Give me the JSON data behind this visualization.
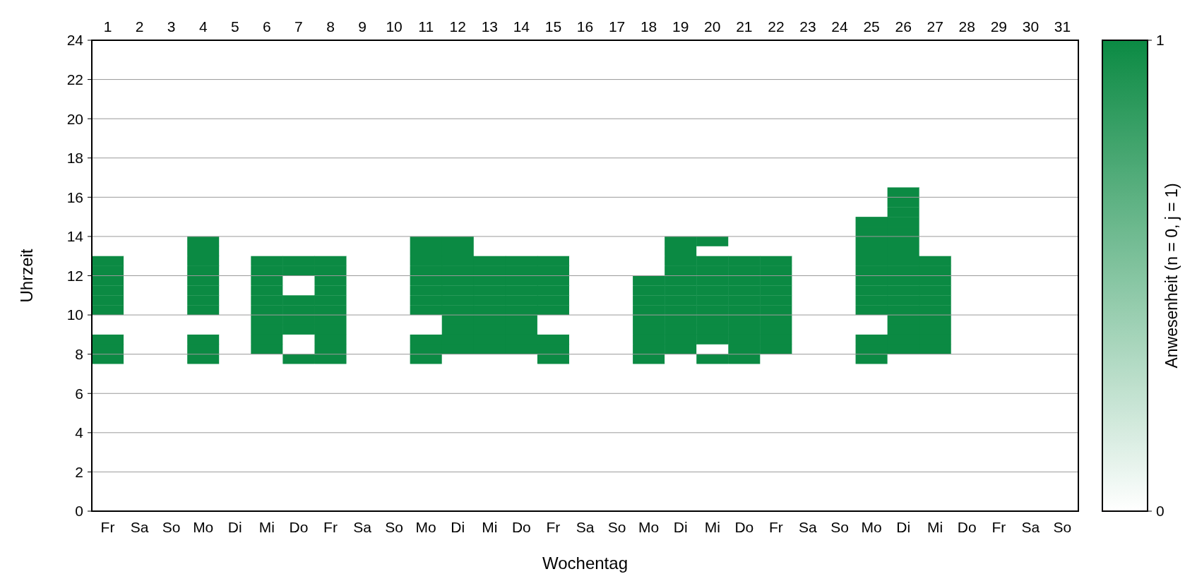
{
  "chart_data": {
    "type": "heatmap",
    "xlabel": "Wochentag",
    "ylabel": "Uhrzeit",
    "clabel": "Anwesenheit (n = 0, j = 1)",
    "categories": [
      "Fr",
      "Sa",
      "So",
      "Mo",
      "Di",
      "Mi",
      "Do",
      "Fr",
      "Sa",
      "So",
      "Mo",
      "Di",
      "Mi",
      "Do",
      "Fr",
      "Sa",
      "So",
      "Mo",
      "Di",
      "Mi",
      "Do",
      "Fr",
      "Sa",
      "So",
      "Mo",
      "Di",
      "Mi",
      "Do",
      "Fr",
      "Sa",
      "So"
    ],
    "x2lim": [
      0.5,
      31.5
    ],
    "x2ticks": [
      1,
      2,
      3,
      4,
      5,
      6,
      7,
      8,
      9,
      10,
      11,
      12,
      13,
      14,
      15,
      16,
      17,
      18,
      19,
      20,
      21,
      22,
      23,
      24,
      25,
      26,
      27,
      28,
      29,
      30,
      31
    ],
    "ylim": [
      0,
      24
    ],
    "yticks": [
      0,
      2,
      4,
      6,
      8,
      10,
      12,
      14,
      16,
      18,
      20,
      22,
      24
    ],
    "grid": "y",
    "clim": [
      0,
      1
    ],
    "cticks": [
      0,
      1
    ],
    "colors": [
      "#ffffff",
      "#0b8a43"
    ],
    "cells": [
      [
        0,
        0,
        0,
        0,
        0,
        0,
        0,
        0,
        0,
        0,
        0,
        0,
        0,
        0,
        0,
        0,
        0,
        0,
        0,
        0,
        0,
        0,
        0,
        0,
        0,
        0,
        0,
        0,
        0,
        0,
        0
      ],
      [
        0,
        0,
        0,
        0,
        0,
        0,
        0,
        0,
        0,
        0,
        0,
        0,
        0,
        0,
        0,
        0,
        0,
        0,
        0,
        0,
        0,
        0,
        0,
        0,
        0,
        0,
        0,
        0,
        0,
        0,
        0
      ],
      [
        0,
        0,
        0,
        0,
        0,
        0,
        0,
        0,
        0,
        0,
        0,
        0,
        0,
        0,
        0,
        0,
        0,
        0,
        0,
        0,
        0,
        0,
        0,
        0,
        0,
        0,
        0,
        0,
        0,
        0,
        0
      ],
      [
        0,
        0,
        0,
        0,
        0,
        0,
        0,
        0,
        0,
        0,
        0,
        0,
        0,
        0,
        0,
        0,
        0,
        0,
        0,
        0,
        0,
        0,
        0,
        0,
        0,
        0,
        0,
        0,
        0,
        0,
        0
      ],
      [
        0,
        0,
        0,
        0,
        0,
        0,
        0,
        0,
        0,
        0,
        0,
        0,
        0,
        0,
        0,
        0,
        0,
        0,
        0,
        0,
        0,
        0,
        0,
        0,
        0,
        0,
        0,
        0,
        0,
        0,
        0
      ],
      [
        0,
        0,
        0,
        0,
        0,
        0,
        0,
        0,
        0,
        0,
        0,
        0,
        0,
        0,
        0,
        0,
        0,
        0,
        0,
        0,
        0,
        0,
        0,
        0,
        0,
        0,
        0,
        0,
        0,
        0,
        0
      ],
      [
        0,
        0,
        0,
        0,
        0,
        0,
        0,
        0,
        0,
        0,
        0,
        0,
        0,
        0,
        0,
        0,
        0,
        0,
        0,
        0,
        0,
        0,
        0,
        0,
        0,
        0,
        0,
        0,
        0,
        0,
        0
      ],
      [
        0,
        0,
        0,
        0,
        0,
        0,
        0,
        0,
        0,
        0,
        0,
        0,
        0,
        0,
        0,
        0,
        0,
        0,
        0,
        0,
        0,
        0,
        0,
        0,
        0,
        0,
        0,
        0,
        0,
        0,
        0
      ],
      [
        0,
        0,
        0,
        0,
        0,
        0,
        0,
        0,
        0,
        0,
        0,
        0,
        0,
        0,
        0,
        0,
        0,
        0,
        0,
        0,
        0,
        0,
        0,
        0,
        0,
        0,
        0,
        0,
        0,
        0,
        0
      ],
      [
        0,
        0,
        0,
        0,
        0,
        0,
        0,
        0,
        0,
        0,
        0,
        0,
        0,
        0,
        0,
        0,
        0,
        0,
        0,
        0,
        0,
        0,
        0,
        0,
        0,
        0,
        0,
        0,
        0,
        0,
        0
      ],
      [
        0,
        0,
        0,
        0,
        0,
        0,
        0,
        0,
        0,
        0,
        0,
        0,
        0,
        0,
        0,
        0,
        0,
        0,
        0,
        0,
        0,
        0,
        0,
        0,
        0,
        0,
        0,
        0,
        0,
        0,
        0
      ],
      [
        0,
        0,
        0,
        0,
        0,
        0,
        0,
        0,
        0,
        0,
        0,
        0,
        0,
        0,
        0,
        0,
        0,
        0,
        0,
        0,
        0,
        0,
        0,
        0,
        0,
        0,
        0,
        0,
        0,
        0,
        0
      ],
      [
        0,
        0,
        0,
        0,
        0,
        0,
        0,
        0,
        0,
        0,
        0,
        0,
        0,
        0,
        0,
        0,
        0,
        0,
        0,
        0,
        0,
        0,
        0,
        0,
        0,
        0,
        0,
        0,
        0,
        0,
        0
      ],
      [
        0,
        0,
        0,
        0,
        0,
        0,
        0,
        0,
        0,
        0,
        0,
        0,
        0,
        0,
        0,
        0,
        0,
        0,
        0,
        0,
        0,
        0,
        0,
        0,
        0,
        0,
        0,
        0,
        0,
        0,
        0
      ],
      [
        0,
        0,
        0,
        0,
        0,
        0,
        0,
        0,
        0,
        0,
        0,
        0,
        0,
        0,
        0,
        0,
        0,
        0,
        0,
        0,
        0,
        0,
        0,
        0,
        0,
        0,
        0,
        0,
        0,
        0,
        0
      ],
      [
        0,
        0,
        0,
        0,
        0,
        0,
        0,
        0,
        0,
        0,
        0,
        0,
        0,
        0,
        0,
        0,
        0,
        0,
        0,
        0,
        0,
        0,
        0,
        0,
        0,
        1,
        0,
        0,
        0,
        0,
        0
      ],
      [
        0,
        0,
        0,
        0,
        0,
        0,
        0,
        0,
        0,
        0,
        0,
        0,
        0,
        0,
        0,
        0,
        0,
        0,
        0,
        0,
        0,
        0,
        0,
        0,
        0,
        1,
        0,
        0,
        0,
        0,
        0
      ],
      [
        0,
        0,
        0,
        0,
        0,
        0,
        0,
        0,
        0,
        0,
        0,
        0,
        0,
        0,
        0,
        0,
        0,
        0,
        0,
        0,
        0,
        0,
        0,
        0,
        0,
        1,
        0,
        0,
        0,
        0,
        0
      ],
      [
        0,
        0,
        0,
        0,
        0,
        0,
        0,
        0,
        0,
        0,
        0,
        0,
        0,
        0,
        0,
        0,
        0,
        0,
        0,
        0,
        0,
        0,
        0,
        0,
        1,
        1,
        0,
        0,
        0,
        0,
        0
      ],
      [
        0,
        0,
        0,
        0,
        0,
        0,
        0,
        0,
        0,
        0,
        0,
        0,
        0,
        0,
        0,
        0,
        0,
        0,
        0,
        0,
        0,
        0,
        0,
        0,
        1,
        1,
        0,
        0,
        0,
        0,
        0
      ],
      [
        0,
        0,
        0,
        1,
        0,
        0,
        0,
        0,
        0,
        0,
        1,
        1,
        0,
        0,
        0,
        0,
        0,
        0,
        1,
        1,
        0,
        0,
        0,
        0,
        1,
        1,
        0,
        0,
        0,
        0,
        0
      ],
      [
        0,
        0,
        0,
        1,
        0,
        0,
        0,
        0,
        0,
        0,
        1,
        1,
        0,
        0,
        0,
        0,
        0,
        0,
        1,
        0,
        0,
        0,
        0,
        0,
        1,
        1,
        0,
        0,
        0,
        0,
        0
      ],
      [
        1,
        0,
        0,
        1,
        0,
        1,
        1,
        1,
        0,
        0,
        1,
        1,
        1,
        1,
        1,
        0,
        0,
        0,
        1,
        1,
        1,
        1,
        0,
        0,
        1,
        1,
        1,
        0,
        0,
        0,
        0
      ],
      [
        1,
        0,
        0,
        1,
        0,
        1,
        1,
        1,
        0,
        0,
        1,
        1,
        1,
        1,
        1,
        0,
        0,
        0,
        1,
        1,
        1,
        1,
        0,
        0,
        1,
        1,
        1,
        0,
        0,
        0,
        0
      ],
      [
        1,
        0,
        0,
        1,
        0,
        1,
        0,
        1,
        0,
        0,
        1,
        1,
        1,
        1,
        1,
        0,
        0,
        1,
        1,
        1,
        1,
        1,
        0,
        0,
        1,
        1,
        1,
        0,
        0,
        0,
        0
      ],
      [
        1,
        0,
        0,
        1,
        0,
        1,
        0,
        1,
        0,
        0,
        1,
        1,
        1,
        1,
        1,
        0,
        0,
        1,
        1,
        1,
        1,
        1,
        0,
        0,
        1,
        1,
        1,
        0,
        0,
        0,
        0
      ],
      [
        1,
        0,
        0,
        1,
        0,
        1,
        1,
        1,
        0,
        0,
        1,
        1,
        1,
        1,
        1,
        0,
        0,
        1,
        1,
        1,
        1,
        1,
        0,
        0,
        1,
        1,
        1,
        0,
        0,
        0,
        0
      ],
      [
        1,
        0,
        0,
        1,
        0,
        1,
        1,
        1,
        0,
        0,
        1,
        1,
        1,
        1,
        1,
        0,
        0,
        1,
        1,
        1,
        1,
        1,
        0,
        0,
        1,
        1,
        1,
        0,
        0,
        0,
        0
      ],
      [
        0,
        0,
        0,
        0,
        0,
        1,
        1,
        1,
        0,
        0,
        0,
        1,
        1,
        1,
        0,
        0,
        0,
        1,
        1,
        1,
        1,
        1,
        0,
        0,
        0,
        1,
        1,
        0,
        0,
        0,
        0
      ],
      [
        0,
        0,
        0,
        0,
        0,
        1,
        1,
        1,
        0,
        0,
        0,
        1,
        1,
        1,
        0,
        0,
        0,
        1,
        1,
        1,
        1,
        1,
        0,
        0,
        0,
        1,
        1,
        0,
        0,
        0,
        0
      ],
      [
        1,
        0,
        0,
        1,
        0,
        1,
        0,
        1,
        0,
        0,
        1,
        1,
        1,
        1,
        1,
        0,
        0,
        1,
        1,
        1,
        1,
        1,
        0,
        0,
        1,
        1,
        1,
        0,
        0,
        0,
        0
      ],
      [
        1,
        0,
        0,
        1,
        0,
        1,
        0,
        1,
        0,
        0,
        1,
        1,
        1,
        1,
        1,
        0,
        0,
        1,
        1,
        0,
        1,
        1,
        0,
        0,
        1,
        1,
        1,
        0,
        0,
        0,
        0
      ],
      [
        1,
        0,
        0,
        1,
        0,
        0,
        1,
        1,
        0,
        0,
        1,
        0,
        0,
        0,
        1,
        0,
        0,
        1,
        0,
        1,
        1,
        0,
        0,
        0,
        1,
        0,
        0,
        0,
        0,
        0,
        0
      ],
      [
        0,
        0,
        0,
        0,
        0,
        0,
        0,
        0,
        0,
        0,
        0,
        0,
        0,
        0,
        0,
        0,
        0,
        0,
        0,
        0,
        0,
        0,
        0,
        0,
        0,
        0,
        0,
        0,
        0,
        0,
        0
      ],
      [
        0,
        0,
        0,
        0,
        0,
        0,
        0,
        0,
        0,
        0,
        0,
        0,
        0,
        0,
        0,
        0,
        0,
        0,
        0,
        0,
        0,
        0,
        0,
        0,
        0,
        0,
        0,
        0,
        0,
        0,
        0
      ],
      [
        0,
        0,
        0,
        0,
        0,
        0,
        0,
        0,
        0,
        0,
        0,
        0,
        0,
        0,
        0,
        0,
        0,
        0,
        0,
        0,
        0,
        0,
        0,
        0,
        0,
        0,
        0,
        0,
        0,
        0,
        0
      ],
      [
        0,
        0,
        0,
        0,
        0,
        0,
        0,
        0,
        0,
        0,
        0,
        0,
        0,
        0,
        0,
        0,
        0,
        0,
        0,
        0,
        0,
        0,
        0,
        0,
        0,
        0,
        0,
        0,
        0,
        0,
        0
      ],
      [
        0,
        0,
        0,
        0,
        0,
        0,
        0,
        0,
        0,
        0,
        0,
        0,
        0,
        0,
        0,
        0,
        0,
        0,
        0,
        0,
        0,
        0,
        0,
        0,
        0,
        0,
        0,
        0,
        0,
        0,
        0
      ],
      [
        0,
        0,
        0,
        0,
        0,
        0,
        0,
        0,
        0,
        0,
        0,
        0,
        0,
        0,
        0,
        0,
        0,
        0,
        0,
        0,
        0,
        0,
        0,
        0,
        0,
        0,
        0,
        0,
        0,
        0,
        0
      ],
      [
        0,
        0,
        0,
        0,
        0,
        0,
        0,
        0,
        0,
        0,
        0,
        0,
        0,
        0,
        0,
        0,
        0,
        0,
        0,
        0,
        0,
        0,
        0,
        0,
        0,
        0,
        0,
        0,
        0,
        0,
        0
      ],
      [
        0,
        0,
        0,
        0,
        0,
        0,
        0,
        0,
        0,
        0,
        0,
        0,
        0,
        0,
        0,
        0,
        0,
        0,
        0,
        0,
        0,
        0,
        0,
        0,
        0,
        0,
        0,
        0,
        0,
        0,
        0
      ],
      [
        0,
        0,
        0,
        0,
        0,
        0,
        0,
        0,
        0,
        0,
        0,
        0,
        0,
        0,
        0,
        0,
        0,
        0,
        0,
        0,
        0,
        0,
        0,
        0,
        0,
        0,
        0,
        0,
        0,
        0,
        0
      ],
      [
        0,
        0,
        0,
        0,
        0,
        0,
        0,
        0,
        0,
        0,
        0,
        0,
        0,
        0,
        0,
        0,
        0,
        0,
        0,
        0,
        0,
        0,
        0,
        0,
        0,
        0,
        0,
        0,
        0,
        0,
        0
      ],
      [
        0,
        0,
        0,
        0,
        0,
        0,
        0,
        0,
        0,
        0,
        0,
        0,
        0,
        0,
        0,
        0,
        0,
        0,
        0,
        0,
        0,
        0,
        0,
        0,
        0,
        0,
        0,
        0,
        0,
        0,
        0
      ],
      [
        0,
        0,
        0,
        0,
        0,
        0,
        0,
        0,
        0,
        0,
        0,
        0,
        0,
        0,
        0,
        0,
        0,
        0,
        0,
        0,
        0,
        0,
        0,
        0,
        0,
        0,
        0,
        0,
        0,
        0,
        0
      ],
      [
        0,
        0,
        0,
        0,
        0,
        0,
        0,
        0,
        0,
        0,
        0,
        0,
        0,
        0,
        0,
        0,
        0,
        0,
        0,
        0,
        0,
        0,
        0,
        0,
        0,
        0,
        0,
        0,
        0,
        0,
        0
      ],
      [
        0,
        0,
        0,
        0,
        0,
        0,
        0,
        0,
        0,
        0,
        0,
        0,
        0,
        0,
        0,
        0,
        0,
        0,
        0,
        0,
        0,
        0,
        0,
        0,
        0,
        0,
        0,
        0,
        0,
        0,
        0
      ],
      [
        0,
        0,
        0,
        0,
        0,
        0,
        0,
        0,
        0,
        0,
        0,
        0,
        0,
        0,
        0,
        0,
        0,
        0,
        0,
        0,
        0,
        0,
        0,
        0,
        0,
        0,
        0,
        0,
        0,
        0,
        0
      ]
    ]
  }
}
